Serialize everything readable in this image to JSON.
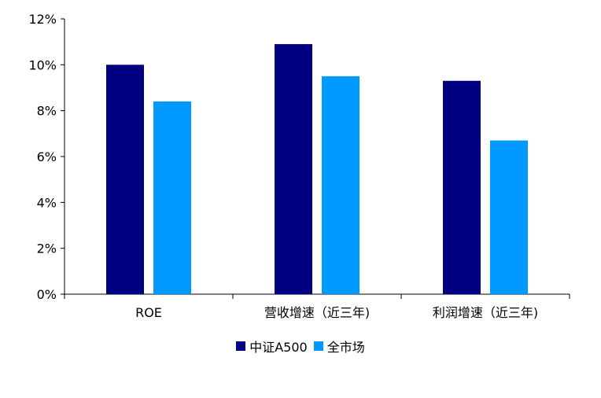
{
  "chart_data": {
    "type": "bar",
    "categories": [
      "ROE",
      "营收增速（近三年)",
      "利润增速（近三年)"
    ],
    "series": [
      {
        "name": "中证A500",
        "values": [
          10.0,
          10.9,
          9.3
        ],
        "color": "#000080"
      },
      {
        "name": "全市场",
        "values": [
          8.4,
          9.5,
          6.7
        ],
        "color": "#0099ff"
      }
    ],
    "yticks": [
      "0%",
      "2%",
      "4%",
      "6%",
      "8%",
      "10%",
      "12%"
    ],
    "ylim": [
      0,
      12
    ],
    "grid": false,
    "legend": "bottom-center"
  }
}
